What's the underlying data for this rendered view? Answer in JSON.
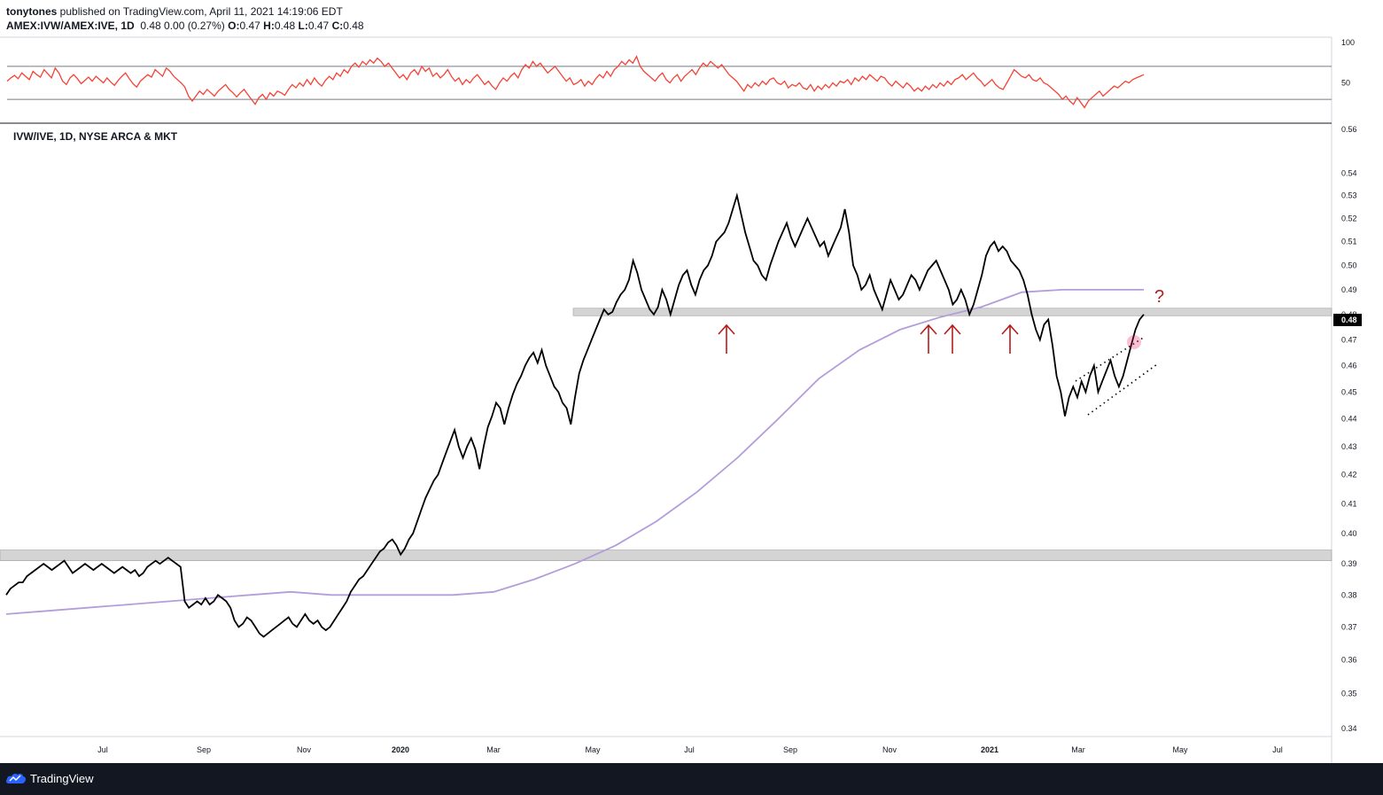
{
  "header": {
    "publisher": "tonytones",
    "published_text": " published on TradingView.com, April 11, 2021 14:19:06 EDT",
    "symbol": "AMEX:IVW/AMEX:IVE, 1D",
    "change": "0.48 0.00 (0.27%)",
    "open_label": "O:",
    "open_value": "0.47",
    "high_label": "H:",
    "high_value": "0.48",
    "low_label": "L:",
    "low_value": "0.47",
    "close_label": "C:",
    "close_value": "0.48"
  },
  "footer": {
    "brand": "TradingView"
  },
  "colors": {
    "price": "#000000",
    "ma": "#b39ddb",
    "rsi": "#f44336",
    "zone": "#bdbdbd",
    "arrow": "#b71c1c",
    "last_price_bg": "#000000"
  },
  "chart_data": [
    {
      "type": "line",
      "name": "rsi_panel",
      "y_ticks": [
        "100",
        "50"
      ],
      "levels": [
        70,
        30
      ],
      "ylim": [
        0,
        100
      ],
      "series": [
        {
          "values": [
            52,
            56,
            59,
            55,
            62,
            58,
            54,
            64,
            60,
            57,
            66,
            61,
            56,
            68,
            62,
            52,
            48,
            56,
            60,
            55,
            49,
            53,
            57,
            52,
            58,
            54,
            50,
            56,
            51,
            47,
            53,
            58,
            62,
            55,
            49,
            45,
            52,
            56,
            60,
            57,
            66,
            62,
            58,
            68,
            64,
            58,
            54,
            50,
            45,
            34,
            28,
            34,
            40,
            36,
            42,
            38,
            34,
            40,
            44,
            48,
            42,
            38,
            33,
            38,
            42,
            36,
            30,
            24,
            32,
            36,
            30,
            38,
            34,
            40,
            38,
            35,
            42,
            48,
            44,
            50,
            46,
            54,
            48,
            56,
            50,
            46,
            53,
            58,
            54,
            62,
            58,
            66,
            62,
            70,
            74,
            69,
            76,
            72,
            78,
            74,
            80,
            76,
            70,
            74,
            68,
            62,
            56,
            60,
            54,
            62,
            66,
            60,
            70,
            64,
            68,
            58,
            62,
            56,
            60,
            66,
            58,
            52,
            56,
            48,
            54,
            50,
            56,
            60,
            54,
            48,
            52,
            46,
            42,
            50,
            56,
            52,
            58,
            62,
            56,
            66,
            72,
            68,
            76,
            70,
            74,
            68,
            62,
            66,
            70,
            64,
            58,
            52,
            56,
            48,
            50,
            54,
            46,
            52,
            48,
            55,
            60,
            56,
            64,
            58,
            66,
            70,
            76,
            72,
            78,
            74,
            82,
            70,
            64,
            60,
            56,
            52,
            58,
            62,
            54,
            50,
            56,
            60,
            52,
            58,
            62,
            66,
            60,
            68,
            74,
            70,
            76,
            72,
            68,
            72,
            66,
            60,
            56,
            52,
            46,
            40,
            48,
            44,
            50,
            46,
            52,
            48,
            54,
            56,
            50,
            48,
            52,
            44,
            48,
            46,
            50,
            44,
            42,
            48,
            40,
            46,
            42,
            48,
            44,
            50,
            46,
            52,
            50,
            54,
            48,
            56,
            52,
            58,
            54,
            60,
            56,
            52,
            58,
            56,
            50,
            46,
            52,
            48,
            44,
            50,
            46,
            40,
            44,
            40,
            46,
            42,
            48,
            44,
            50,
            46,
            52,
            48,
            54,
            56,
            60,
            54,
            58,
            62,
            56,
            52,
            46,
            50,
            54,
            48,
            44,
            42,
            50,
            58,
            66,
            62,
            58,
            56,
            60,
            54,
            52,
            56,
            50,
            48,
            44,
            40,
            36,
            30,
            34,
            28,
            24,
            32,
            26,
            20,
            28,
            32,
            36,
            40,
            34,
            38,
            42,
            46,
            44,
            48,
            52,
            50,
            54,
            56,
            58,
            60
          ]
        }
      ]
    },
    {
      "type": "line",
      "title": "IVW/IVE, 1D, NYSE ARCA & MKT",
      "x_ticks": [
        "Jul",
        "Sep",
        "Nov",
        "2020",
        "Mar",
        "May",
        "Jul",
        "Sep",
        "Nov",
        "2021",
        "Mar",
        "May",
        "Jul"
      ],
      "y_ticks": [
        "0.56",
        "0.54",
        "0.53",
        "0.52",
        "0.51",
        "0.50",
        "0.49",
        "0.48",
        "0.47",
        "0.46",
        "0.45",
        "0.44",
        "0.43",
        "0.42",
        "0.41",
        "0.40",
        "0.39",
        "0.38",
        "0.37",
        "0.36",
        "0.35",
        "0.34"
      ],
      "last_price": "0.48",
      "annotation": "?",
      "zones": [
        {
          "from": 0.4795,
          "to": 0.4825,
          "start": 0.43
        },
        {
          "from": 0.391,
          "to": 0.3945,
          "start": 0.0
        }
      ],
      "series": [
        {
          "name": "price",
          "values": [
            0.38,
            0.382,
            0.383,
            0.384,
            0.384,
            0.386,
            0.387,
            0.388,
            0.389,
            0.39,
            0.389,
            0.388,
            0.389,
            0.39,
            0.391,
            0.389,
            0.387,
            0.388,
            0.389,
            0.39,
            0.389,
            0.388,
            0.389,
            0.39,
            0.389,
            0.388,
            0.387,
            0.388,
            0.389,
            0.388,
            0.387,
            0.388,
            0.386,
            0.387,
            0.389,
            0.39,
            0.391,
            0.39,
            0.391,
            0.392,
            0.391,
            0.39,
            0.389,
            0.378,
            0.376,
            0.377,
            0.378,
            0.377,
            0.379,
            0.377,
            0.378,
            0.38,
            0.379,
            0.378,
            0.376,
            0.372,
            0.37,
            0.371,
            0.373,
            0.372,
            0.37,
            0.368,
            0.367,
            0.368,
            0.369,
            0.37,
            0.371,
            0.372,
            0.373,
            0.371,
            0.37,
            0.372,
            0.374,
            0.372,
            0.371,
            0.372,
            0.37,
            0.369,
            0.37,
            0.372,
            0.374,
            0.376,
            0.378,
            0.381,
            0.383,
            0.385,
            0.386,
            0.388,
            0.39,
            0.392,
            0.394,
            0.395,
            0.397,
            0.398,
            0.396,
            0.393,
            0.395,
            0.398,
            0.4,
            0.404,
            0.408,
            0.412,
            0.415,
            0.418,
            0.42,
            0.424,
            0.428,
            0.432,
            0.436,
            0.43,
            0.426,
            0.43,
            0.433,
            0.429,
            0.422,
            0.43,
            0.437,
            0.441,
            0.446,
            0.444,
            0.438,
            0.444,
            0.449,
            0.453,
            0.456,
            0.46,
            0.463,
            0.465,
            0.461,
            0.466,
            0.46,
            0.456,
            0.452,
            0.45,
            0.446,
            0.444,
            0.438,
            0.448,
            0.457,
            0.462,
            0.466,
            0.47,
            0.474,
            0.478,
            0.482,
            0.48,
            0.481,
            0.485,
            0.488,
            0.49,
            0.494,
            0.502,
            0.497,
            0.49,
            0.486,
            0.482,
            0.48,
            0.483,
            0.49,
            0.486,
            0.48,
            0.486,
            0.492,
            0.496,
            0.498,
            0.492,
            0.488,
            0.494,
            0.498,
            0.5,
            0.504,
            0.51,
            0.512,
            0.514,
            0.518,
            0.524,
            0.53,
            0.522,
            0.514,
            0.508,
            0.502,
            0.5,
            0.496,
            0.494,
            0.5,
            0.505,
            0.51,
            0.514,
            0.518,
            0.512,
            0.508,
            0.512,
            0.516,
            0.52,
            0.516,
            0.512,
            0.508,
            0.51,
            0.504,
            0.508,
            0.512,
            0.516,
            0.524,
            0.514,
            0.5,
            0.496,
            0.49,
            0.492,
            0.496,
            0.49,
            0.486,
            0.482,
            0.488,
            0.494,
            0.49,
            0.486,
            0.488,
            0.492,
            0.496,
            0.494,
            0.49,
            0.494,
            0.498,
            0.5,
            0.502,
            0.498,
            0.494,
            0.49,
            0.484,
            0.486,
            0.49,
            0.486,
            0.48,
            0.484,
            0.49,
            0.496,
            0.504,
            0.508,
            0.51,
            0.506,
            0.508,
            0.506,
            0.502,
            0.5,
            0.498,
            0.494,
            0.488,
            0.48,
            0.474,
            0.47,
            0.476,
            0.478,
            0.468,
            0.456,
            0.45,
            0.441,
            0.448,
            0.452,
            0.448,
            0.454,
            0.45,
            0.456,
            0.46,
            0.45,
            0.454,
            0.458,
            0.462,
            0.456,
            0.452,
            0.456,
            0.462,
            0.468,
            0.474,
            0.478,
            0.48
          ]
        },
        {
          "name": "moving_average",
          "values": [
            0.374,
            0.375,
            0.376,
            0.377,
            0.378,
            0.379,
            0.38,
            0.381,
            0.38,
            0.38,
            0.38,
            0.38,
            0.381,
            0.385,
            0.39,
            0.396,
            0.404,
            0.414,
            0.426,
            0.44,
            0.455,
            0.466,
            0.474,
            0.479,
            0.483,
            0.489,
            0.49,
            0.49,
            0.49
          ]
        }
      ],
      "channel_lines": [
        {
          "from": [
            0.465,
            0.452
          ],
          "to": [
            0.488,
            0.465
          ]
        },
        {
          "from": [
            0.467,
            0.441
          ],
          "to": [
            0.491,
            0.458
          ]
        }
      ]
    }
  ]
}
